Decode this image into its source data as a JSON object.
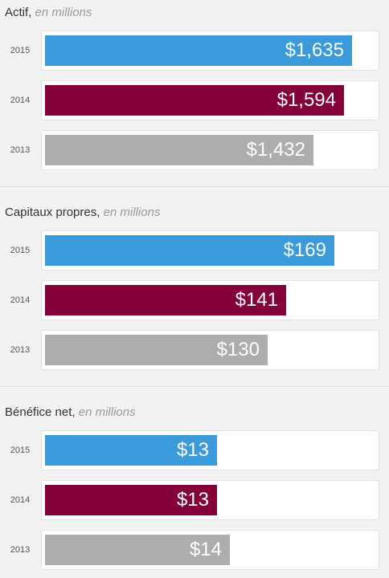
{
  "colors": {
    "2015": "#3b9ad9",
    "2014": "#84003a",
    "2013": "#adadad"
  },
  "chart_data": [
    {
      "type": "bar",
      "orientation": "horizontal",
      "title": "Actif,",
      "title_unit": "en millions",
      "categories": [
        "2015",
        "2014",
        "2013"
      ],
      "values": [
        1635,
        1594,
        1432
      ],
      "labels": [
        "$1,635",
        "$1,594",
        "$1,432"
      ],
      "xlim": [
        0,
        1760
      ]
    },
    {
      "type": "bar",
      "orientation": "horizontal",
      "title": "Capitaux propres,",
      "title_unit": "en millions",
      "categories": [
        "2015",
        "2014",
        "2013"
      ],
      "values": [
        169,
        141,
        130
      ],
      "labels": [
        "$169",
        "$141",
        "$130"
      ],
      "xlim": [
        0,
        193
      ]
    },
    {
      "type": "bar",
      "orientation": "horizontal",
      "title": "Bénéfice net,",
      "title_unit": "en millions",
      "categories": [
        "2015",
        "2014",
        "2013"
      ],
      "values": [
        13,
        13,
        14
      ],
      "labels": [
        "$13",
        "$13",
        "$14"
      ],
      "xlim": [
        0,
        25
      ]
    }
  ]
}
